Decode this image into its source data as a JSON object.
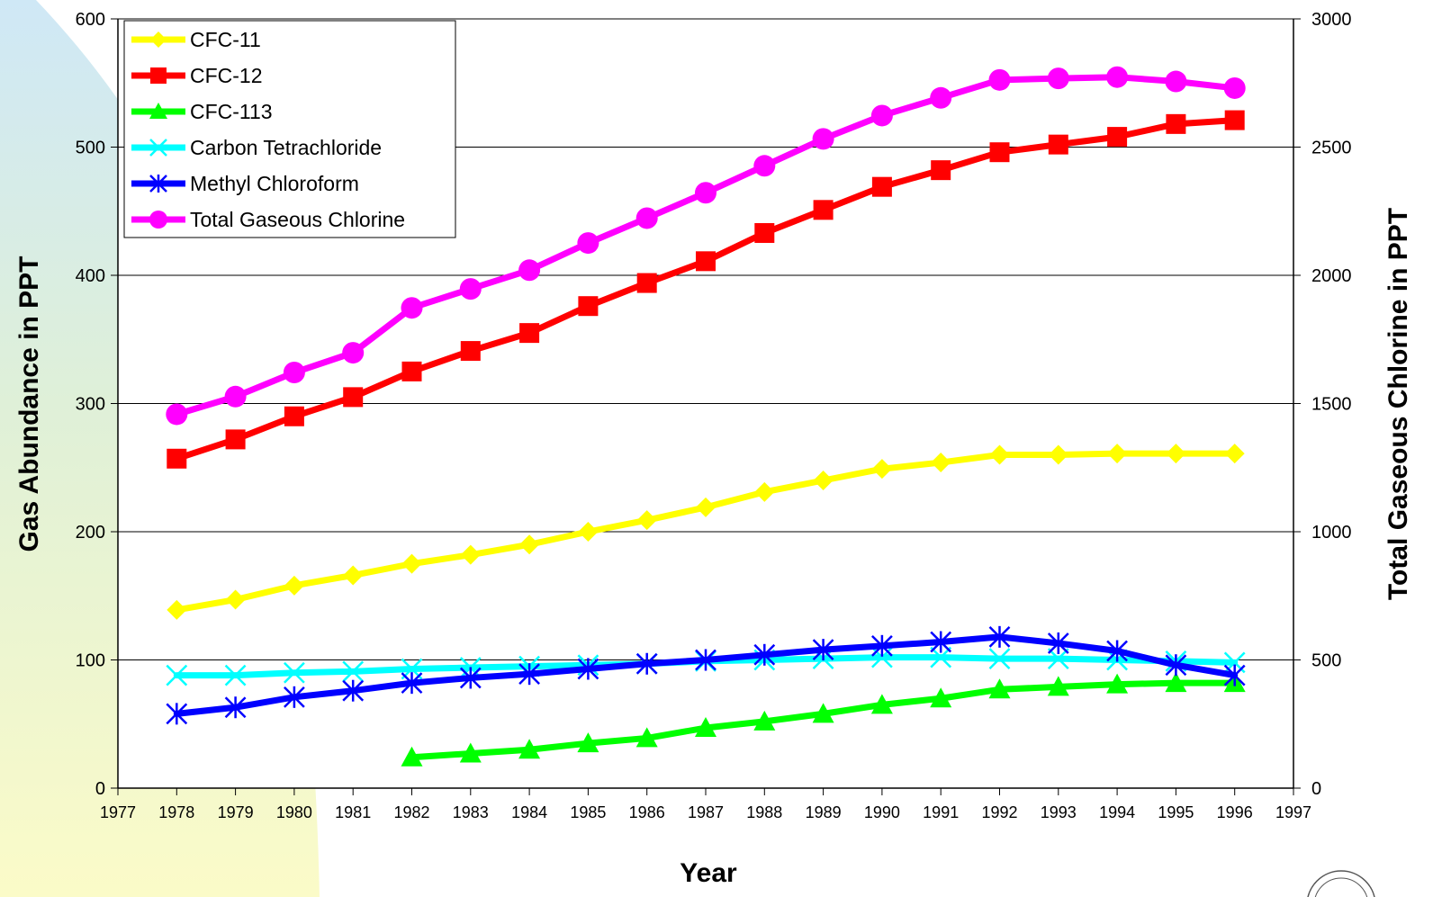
{
  "chart_data": {
    "type": "line",
    "title": "",
    "xlabel": "Year",
    "ylabel": "Gas Abundance in PPT",
    "y2label": "Total Gaseous Chlorine in PPT",
    "xlim": [
      1977,
      1997
    ],
    "ylim": [
      0,
      600
    ],
    "y2lim": [
      0,
      3000
    ],
    "x_ticks": [
      1977,
      1978,
      1979,
      1980,
      1981,
      1982,
      1983,
      1984,
      1985,
      1986,
      1987,
      1988,
      1989,
      1990,
      1991,
      1992,
      1993,
      1994,
      1995,
      1996,
      1997
    ],
    "y_ticks": [
      0,
      100,
      200,
      300,
      400,
      500,
      600
    ],
    "y2_ticks": [
      0,
      500,
      1000,
      1500,
      2000,
      2500,
      3000
    ],
    "grid": "horizontal",
    "legend_position": "top-left",
    "series": [
      {
        "name": "CFC-11",
        "axis": "left",
        "color": "#ffff00",
        "marker": "diamond",
        "x": [
          1978,
          1979,
          1980,
          1981,
          1982,
          1983,
          1984,
          1985,
          1986,
          1987,
          1988,
          1989,
          1990,
          1991,
          1992,
          1993,
          1994,
          1995,
          1996
        ],
        "values": [
          139,
          147,
          158,
          166,
          175,
          182,
          190,
          200,
          209,
          219,
          231,
          240,
          249,
          254,
          260,
          260,
          261,
          261,
          261
        ]
      },
      {
        "name": "CFC-12",
        "axis": "left",
        "color": "#ff0000",
        "marker": "square",
        "x": [
          1978,
          1979,
          1980,
          1981,
          1982,
          1983,
          1984,
          1985,
          1986,
          1987,
          1988,
          1989,
          1990,
          1991,
          1992,
          1993,
          1994,
          1995,
          1996
        ],
        "values": [
          257,
          272,
          290,
          305,
          325,
          341,
          355,
          376,
          394,
          411,
          433,
          451,
          469,
          482,
          496,
          502,
          508,
          518,
          521
        ]
      },
      {
        "name": "CFC-113",
        "axis": "left",
        "color": "#00ff00",
        "marker": "triangle",
        "x": [
          1982,
          1983,
          1984,
          1985,
          1986,
          1987,
          1988,
          1989,
          1990,
          1991,
          1992,
          1993,
          1994,
          1995,
          1996
        ],
        "values": [
          24,
          27,
          30,
          35,
          39,
          47,
          52,
          58,
          65,
          70,
          77,
          79,
          81,
          82,
          82
        ]
      },
      {
        "name": "Carbon Tetrachloride",
        "axis": "left",
        "color": "#00ffff",
        "marker": "x",
        "x": [
          1978,
          1979,
          1980,
          1981,
          1982,
          1983,
          1984,
          1985,
          1986,
          1987,
          1988,
          1989,
          1990,
          1991,
          1992,
          1993,
          1994,
          1995,
          1996
        ],
        "values": [
          88,
          88,
          90,
          91,
          93,
          94,
          95,
          96,
          97,
          99,
          100,
          101,
          102,
          102,
          101,
          101,
          100,
          99,
          98
        ]
      },
      {
        "name": "Methyl Chloroform",
        "axis": "left",
        "color": "#0000ff",
        "marker": "asterisk",
        "x": [
          1978,
          1979,
          1980,
          1981,
          1982,
          1983,
          1984,
          1985,
          1986,
          1987,
          1988,
          1989,
          1990,
          1991,
          1992,
          1993,
          1994,
          1995,
          1996
        ],
        "values": [
          58,
          63,
          71,
          76,
          82,
          86,
          89,
          93,
          97,
          100,
          104,
          108,
          111,
          114,
          118,
          113,
          107,
          96,
          88
        ]
      },
      {
        "name": "Total Gaseous Chlorine",
        "axis": "right",
        "color": "#ff00ff",
        "marker": "circle",
        "x": [
          1978,
          1979,
          1980,
          1981,
          1982,
          1983,
          1984,
          1985,
          1986,
          1987,
          1988,
          1989,
          1990,
          1991,
          1992,
          1993,
          1994,
          1995,
          1996
        ],
        "values": [
          1458,
          1527,
          1621,
          1698,
          1873,
          1947,
          2020,
          2126,
          2223,
          2322,
          2427,
          2532,
          2623,
          2692,
          2762,
          2768,
          2773,
          2756,
          2730
        ]
      }
    ]
  }
}
